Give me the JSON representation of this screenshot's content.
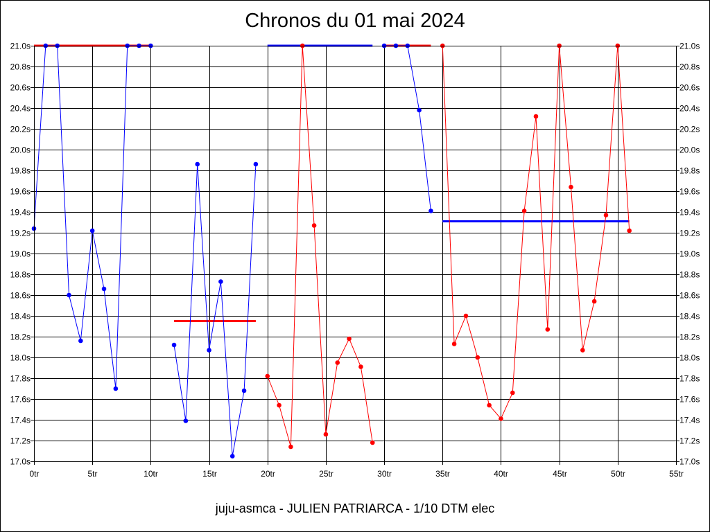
{
  "chart_data": {
    "type": "line",
    "title": "Chronos du 01 mai 2024",
    "subtitle": "juju-asmca - JULIEN PATRIARCA - 1/10 DTM elec",
    "xlim": [
      0,
      55
    ],
    "ylim": [
      17.0,
      21.0
    ],
    "x_ticks": [
      0,
      5,
      10,
      15,
      20,
      25,
      30,
      35,
      40,
      45,
      50,
      55
    ],
    "x_tick_suffix": "tr",
    "y_tick_step": 0.2,
    "y_tick_suffix": "s",
    "y_axis_both_sides": true,
    "grid": true,
    "series": [
      {
        "color": "#0000ff",
        "values": [
          [
            0,
            19.24
          ],
          [
            1,
            21.0
          ],
          [
            2,
            21.0
          ],
          [
            3,
            18.6
          ],
          [
            4,
            18.16
          ],
          [
            5,
            19.22
          ],
          [
            6,
            18.66
          ],
          [
            7,
            17.7
          ],
          [
            8,
            21.0
          ],
          [
            9,
            21.0
          ],
          [
            10,
            21.0
          ]
        ]
      },
      {
        "color": "#0000ff",
        "values": [
          [
            12,
            18.12
          ],
          [
            13,
            17.39
          ],
          [
            14,
            19.86
          ],
          [
            15,
            18.07
          ],
          [
            16,
            18.73
          ],
          [
            17,
            17.05
          ],
          [
            18,
            17.68
          ],
          [
            19,
            19.86
          ]
        ]
      },
      {
        "color": "#ff0000",
        "values": [
          [
            20,
            17.82
          ],
          [
            21,
            17.54
          ],
          [
            22,
            17.14
          ],
          [
            23,
            21.0
          ],
          [
            24,
            19.27
          ],
          [
            25,
            17.26
          ],
          [
            26,
            17.95
          ],
          [
            27,
            18.18
          ],
          [
            28,
            17.91
          ],
          [
            29,
            17.18
          ]
        ]
      },
      {
        "color": "#0000ff",
        "values": [
          [
            30,
            21.0
          ],
          [
            31,
            21.0
          ],
          [
            32,
            21.0
          ],
          [
            33,
            20.38
          ],
          [
            34,
            19.41
          ]
        ]
      },
      {
        "color": "#ff0000",
        "values": [
          [
            35,
            21.0
          ],
          [
            36,
            18.13
          ],
          [
            37,
            18.4
          ],
          [
            38,
            18.0
          ],
          [
            39,
            17.54
          ],
          [
            40,
            17.41
          ],
          [
            41,
            17.66
          ],
          [
            42,
            19.41
          ],
          [
            43,
            20.32
          ],
          [
            44,
            18.27
          ],
          [
            45,
            21.0
          ],
          [
            46,
            19.64
          ],
          [
            47,
            18.07
          ],
          [
            48,
            18.54
          ],
          [
            49,
            19.37
          ],
          [
            50,
            21.0
          ],
          [
            51,
            19.22
          ]
        ]
      }
    ],
    "averages": [
      {
        "color": "#ff0000",
        "x": [
          0,
          10
        ],
        "y": 21.0
      },
      {
        "color": "#ff0000",
        "x": [
          12,
          19
        ],
        "y": 18.35
      },
      {
        "color": "#0000ff",
        "x": [
          20,
          29
        ],
        "y": 21.0
      },
      {
        "color": "#ff0000",
        "x": [
          30,
          34
        ],
        "y": 21.0
      },
      {
        "color": "#0000ff",
        "x": [
          35,
          51
        ],
        "y": 19.31
      }
    ]
  }
}
